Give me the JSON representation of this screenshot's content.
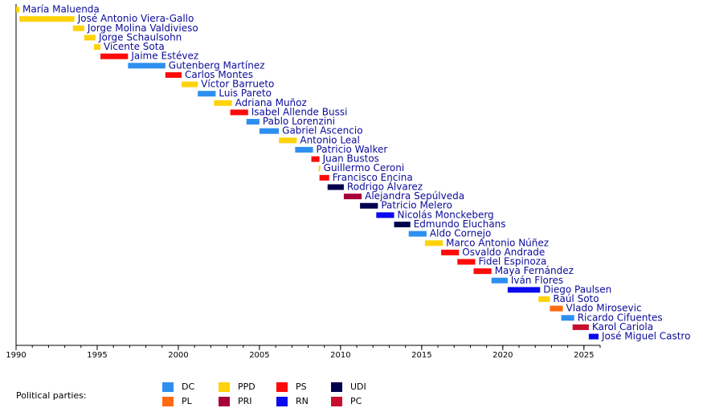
{
  "chart_data": {
    "type": "timeline",
    "xlim": [
      1990,
      2026
    ],
    "xticks": [
      1990,
      1995,
      2000,
      2005,
      2010,
      2015,
      2020,
      2025
    ],
    "legend_title": "Political parties:",
    "parties": [
      {
        "name": "DC",
        "color": "#2d8ff0"
      },
      {
        "name": "PL",
        "color": "#ff6a13"
      },
      {
        "name": "PPD",
        "color": "#ffd20a"
      },
      {
        "name": "PRI",
        "color": "#a8003a"
      },
      {
        "name": "PS",
        "color": "#ff0a0a"
      },
      {
        "name": "RN",
        "color": "#0a0aee"
      },
      {
        "name": "UDI",
        "color": "#00004f"
      },
      {
        "name": "PC",
        "color": "#c8102e"
      }
    ],
    "rows": [
      {
        "name": "María Maluenda",
        "party": "PPD",
        "start": 1990.0,
        "end": 1990.2
      },
      {
        "name": "José Antonio Viera-Gallo",
        "party": "PPD",
        "start": 1990.2,
        "end": 1993.6
      },
      {
        "name": "Jorge Molina Valdivieso",
        "party": "PPD",
        "start": 1993.5,
        "end": 1994.2
      },
      {
        "name": "Jorge Schaulsohn",
        "party": "PPD",
        "start": 1994.2,
        "end": 1994.9
      },
      {
        "name": "Vicente Sota",
        "party": "PPD",
        "start": 1994.8,
        "end": 1995.2
      },
      {
        "name": "Jaime Estévez",
        "party": "PS",
        "start": 1995.2,
        "end": 1996.9
      },
      {
        "name": "Gutenberg Martínez",
        "party": "DC",
        "start": 1996.9,
        "end": 1999.2
      },
      {
        "name": "Carlos Montes",
        "party": "PS",
        "start": 1999.2,
        "end": 2000.2
      },
      {
        "name": "Víctor Barrueto",
        "party": "PPD",
        "start": 2000.2,
        "end": 2001.2
      },
      {
        "name": "Luis Pareto",
        "party": "DC",
        "start": 2001.2,
        "end": 2002.3
      },
      {
        "name": "Adriana Muñoz",
        "party": "PPD",
        "start": 2002.2,
        "end": 2003.3
      },
      {
        "name": "Isabel Allende Bussi",
        "party": "PS",
        "start": 2003.2,
        "end": 2004.3
      },
      {
        "name": "Pablo Lorenzini",
        "party": "DC",
        "start": 2004.2,
        "end": 2005.0
      },
      {
        "name": "Gabriel Ascencio",
        "party": "DC",
        "start": 2005.0,
        "end": 2006.2
      },
      {
        "name": "Antonio Leal",
        "party": "PPD",
        "start": 2006.2,
        "end": 2007.3
      },
      {
        "name": "Patricio Walker",
        "party": "DC",
        "start": 2007.2,
        "end": 2008.3
      },
      {
        "name": "Juan Bustos",
        "party": "PS",
        "start": 2008.2,
        "end": 2008.7
      },
      {
        "name": "Guillermo Ceroni",
        "party": "PPD",
        "start": 2008.65,
        "end": 2008.75
      },
      {
        "name": "Francisco Encina",
        "party": "PS",
        "start": 2008.7,
        "end": 2009.3
      },
      {
        "name": "Rodrigo Álvarez",
        "party": "UDI",
        "start": 2009.2,
        "end": 2010.2
      },
      {
        "name": "Alejandra Sepúlveda",
        "party": "PRI",
        "start": 2010.2,
        "end": 2011.3
      },
      {
        "name": "Patricio Melero",
        "party": "UDI",
        "start": 2011.2,
        "end": 2012.3
      },
      {
        "name": "Nicolás Monckeberg",
        "party": "RN",
        "start": 2012.2,
        "end": 2013.3
      },
      {
        "name": "Edmundo Eluchans",
        "party": "UDI",
        "start": 2013.3,
        "end": 2014.3
      },
      {
        "name": "Aldo Cornejo",
        "party": "DC",
        "start": 2014.2,
        "end": 2015.3
      },
      {
        "name": "Marco Antonio Núñez",
        "party": "PPD",
        "start": 2015.2,
        "end": 2016.3
      },
      {
        "name": "Osvaldo Andrade",
        "party": "PS",
        "start": 2016.2,
        "end": 2017.3
      },
      {
        "name": "Fidel Espinoza",
        "party": "PS",
        "start": 2017.2,
        "end": 2018.3
      },
      {
        "name": "Maya Fernández",
        "party": "PS",
        "start": 2018.2,
        "end": 2019.3
      },
      {
        "name": "Iván Flores",
        "party": "DC",
        "start": 2019.3,
        "end": 2020.3
      },
      {
        "name": "Diego Paulsen",
        "party": "RN",
        "start": 2020.3,
        "end": 2022.3
      },
      {
        "name": "Raúl Soto",
        "party": "PPD",
        "start": 2022.2,
        "end": 2022.9
      },
      {
        "name": "Vlado Mirosevic",
        "party": "PL",
        "start": 2022.9,
        "end": 2023.7
      },
      {
        "name": "Ricardo Cifuentes",
        "party": "DC",
        "start": 2023.6,
        "end": 2024.4
      },
      {
        "name": "Karol Cariola",
        "party": "PC",
        "start": 2024.3,
        "end": 2025.3
      },
      {
        "name": "José Miguel Castro",
        "party": "RN",
        "start": 2025.3,
        "end": 2025.9
      }
    ]
  }
}
